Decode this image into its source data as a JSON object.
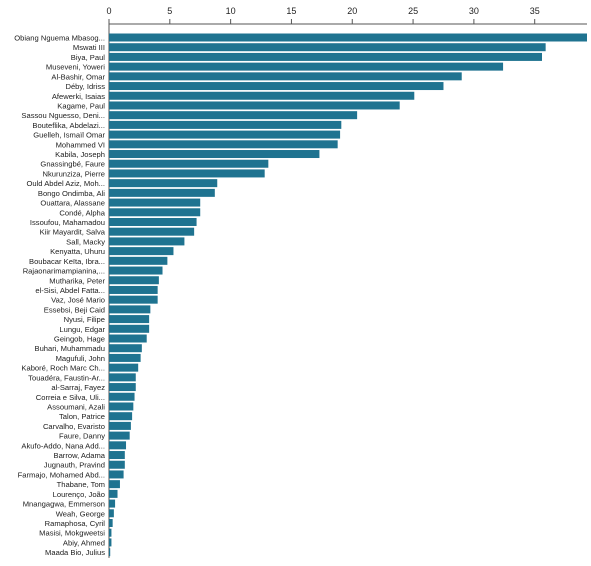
{
  "chart_data": {
    "type": "bar",
    "orientation": "horizontal",
    "axis_position": "top",
    "xlim": [
      0,
      39.3
    ],
    "ticks": [
      0,
      5,
      10,
      15,
      20,
      25,
      30,
      35
    ],
    "bar_color": "#1f7390",
    "categories": [
      "Obiang Nguema Mbasog...",
      "Mswati III",
      "Biya, Paul",
      "Museveni, Yoweri",
      "Al-Bashir, Omar",
      "Déby, Idriss",
      "Afewerki, Isaias",
      "Kagame, Paul",
      "Sassou Nguesso, Deni...",
      "Bouteflika, Abdelazi...",
      "Guelleh, Ismaïl Omar",
      "Mohammed VI",
      "Kabila, Joseph",
      "Gnassingbé, Faure",
      "Nkurunziza, Pierre",
      "Ould Abdel Aziz, Moh...",
      "Bongo Ondimba, Ali",
      "Ouattara, Alassane",
      "Condé, Alpha",
      "Issoufou, Mahamadou",
      "Kiir Mayardit, Salva",
      "Sall, Macky",
      "Kenyatta, Uhuru",
      "Boubacar Keïta, Ibra...",
      "Rajaonarimampianina,...",
      "Mutharika, Peter",
      "el-Sisi, Abdel Fatta...",
      "Vaz, José Mario",
      "Essebsi, Beji Caid",
      "Nyusi, Filipe",
      "Lungu, Edgar",
      "Geingob, Hage",
      "Buhari, Muhammadu",
      "Magufuli, John",
      "Kaboré, Roch Marc Ch...",
      "Touadéra, Faustin-Ar...",
      "al-Sarraj, Fayez",
      "Correia e Silva, Uli...",
      "Assoumani, Azali",
      "Talon, Patrice",
      "Carvalho, Evaristo",
      "Faure, Danny",
      "Akufo-Addo, Nana Add...",
      "Barrow, Adama",
      "Jugnauth, Pravind",
      "Farmajo, Mohamed Abd...",
      "Thabane, Tom",
      "Lourenço, João",
      "Mnangagwa, Emmerson",
      "Weah, George",
      "Ramaphosa, Cyril",
      "Masisi, Mokgweetsi",
      "Abiy, Ahmed",
      "Maada Bio, Julius"
    ],
    "values": [
      39.3,
      35.9,
      35.6,
      32.4,
      29.0,
      27.5,
      25.1,
      23.9,
      20.4,
      19.1,
      19.0,
      18.8,
      17.3,
      13.1,
      12.8,
      8.9,
      8.7,
      7.5,
      7.5,
      7.2,
      7.0,
      6.2,
      5.3,
      4.8,
      4.4,
      4.1,
      4.0,
      4.0,
      3.4,
      3.3,
      3.3,
      3.1,
      2.7,
      2.6,
      2.4,
      2.2,
      2.2,
      2.1,
      2.0,
      1.9,
      1.8,
      1.7,
      1.4,
      1.3,
      1.3,
      1.2,
      0.9,
      0.7,
      0.5,
      0.4,
      0.3,
      0.2,
      0.2,
      0.1
    ]
  }
}
